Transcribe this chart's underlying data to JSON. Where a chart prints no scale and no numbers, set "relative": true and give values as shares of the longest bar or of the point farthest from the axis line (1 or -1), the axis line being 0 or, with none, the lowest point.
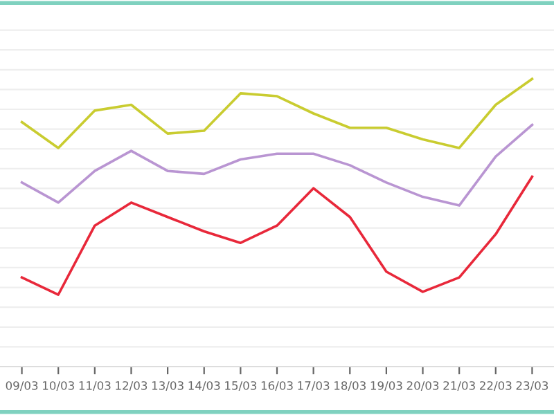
{
  "chart_data": {
    "type": "line",
    "relative": true,
    "grid": "y",
    "marker": "none",
    "line_style": "solid",
    "categories": [
      "09/03",
      "10/03",
      "11/03",
      "12/03",
      "13/03",
      "14/03",
      "15/03",
      "16/03",
      "17/03",
      "18/03",
      "19/03",
      "20/03",
      "21/03",
      "22/03",
      "23/03"
    ],
    "series": [
      {
        "color": "#c9cc30",
        "values": [
          0.85,
          0.76,
          0.89,
          0.91,
          0.81,
          0.82,
          0.95,
          0.94,
          0.88,
          0.83,
          0.83,
          0.79,
          0.76,
          0.91,
          1.0
        ]
      },
      {
        "color": "#b995d2",
        "values": [
          0.64,
          0.57,
          0.68,
          0.75,
          0.68,
          0.67,
          0.72,
          0.74,
          0.74,
          0.7,
          0.64,
          0.59,
          0.56,
          0.73,
          0.84
        ]
      },
      {
        "color": "#e8283a",
        "values": [
          0.31,
          0.25,
          0.49,
          0.57,
          0.52,
          0.47,
          0.43,
          0.49,
          0.62,
          0.52,
          0.33,
          0.26,
          0.31,
          0.46,
          0.66
        ]
      }
    ]
  }
}
